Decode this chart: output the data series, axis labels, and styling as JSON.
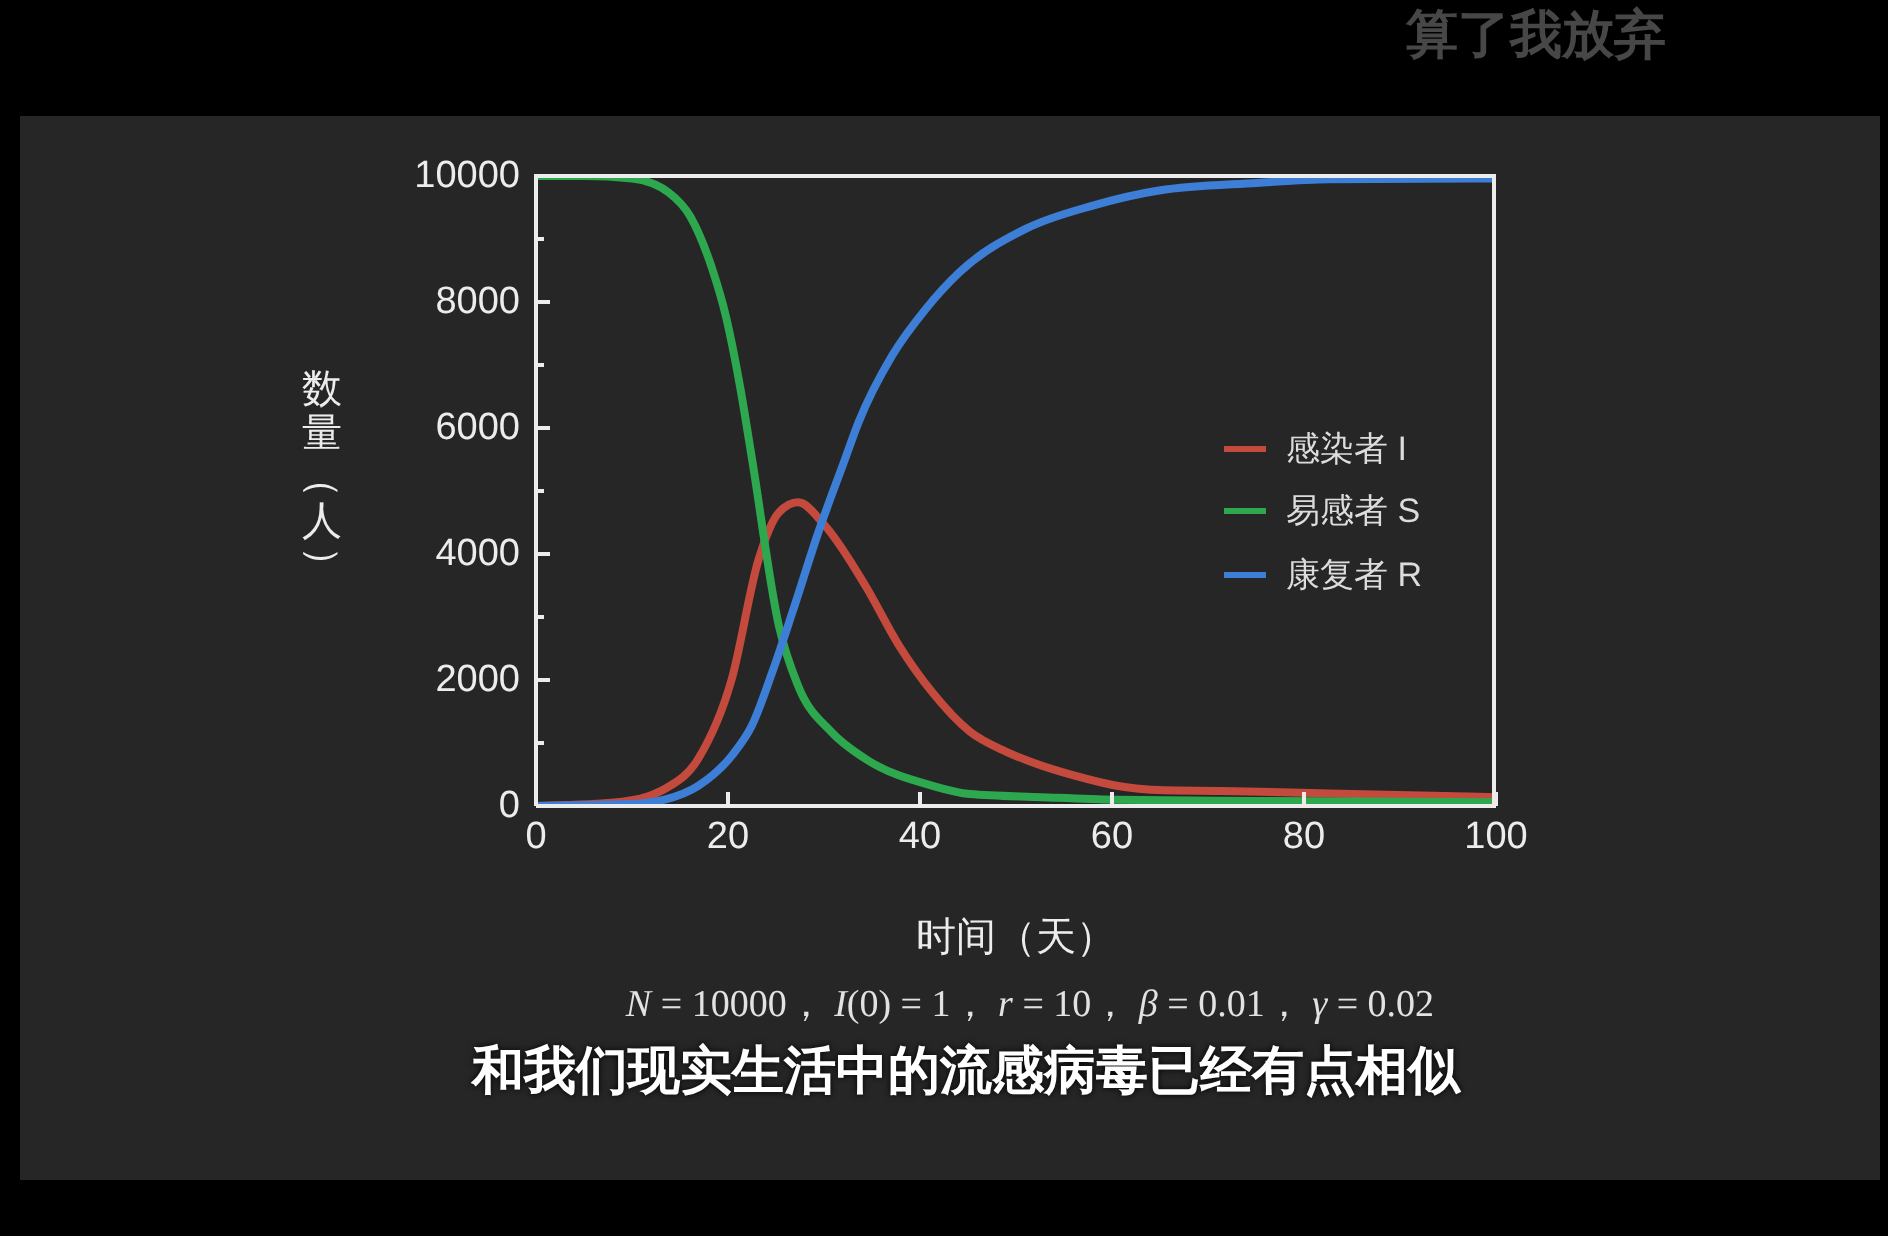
{
  "chart_data": {
    "type": "line",
    "xlabel": "时间（天）",
    "ylabel": "数量（人）",
    "annotations": [
      "算了我放弃",
      "N = 10000， I(0) = 1， r = 10， β = 0.01， γ = 0.02",
      "和我们现实生活中的流感病毒已经有点相似"
    ],
    "xlim": [
      0,
      100
    ],
    "xticks": [
      0,
      20,
      40,
      60,
      80,
      100
    ],
    "ylim": [
      0,
      10000
    ],
    "yticks": [
      0,
      {
        "value": 1000,
        "label": null
      },
      2000,
      {
        "value": 3000,
        "label": null
      },
      4000,
      {
        "value": 5000,
        "label": null
      },
      6000,
      {
        "value": 7000,
        "label": null
      },
      8000,
      {
        "value": 9000,
        "label": null
      },
      10000
    ],
    "legend": "right",
    "series": [
      {
        "name": "感染者 I",
        "color": "#c44a3e",
        "x": [
          0,
          7.8,
          11.6,
          13.4,
          16.9,
          20.4,
          23.2,
          25.3,
          27.3,
          30.1,
          34.3,
          37.8,
          41.3,
          45.2,
          49,
          52.7,
          56.4,
          60.2,
          65.4,
          71.4,
          82.6,
          100
        ],
        "values": [
          0,
          50,
          150,
          270,
          750,
          2020,
          3920,
          4660,
          4820,
          4450,
          3500,
          2550,
          1800,
          1180,
          860,
          640,
          470,
          330,
          250,
          240,
          200,
          140
        ]
      },
      {
        "name": "易感者 S",
        "color": "#2ea84e",
        "x": [
          0,
          5,
          10,
          13.8,
          16.1,
          18.3,
          19.8,
          21.3,
          22.5,
          25.3,
          27.3,
          30.8,
          34.3,
          41.3,
          45.2,
          52.7,
          60.2,
          75,
          100
        ],
        "values": [
          10000,
          10000,
          9960,
          9740,
          9350,
          8550,
          7760,
          6620,
          5510,
          2860,
          1910,
          1170,
          750,
          320,
          190,
          140,
          100,
          80,
          60
        ]
      },
      {
        "name": "康复者 R",
        "color": "#3d7fd6",
        "x": [
          0,
          10,
          13.4,
          16.9,
          20.4,
          22.5,
          24.6,
          26.7,
          29.4,
          32.2,
          33.6,
          37.1,
          40.6,
          44.1,
          51,
          58,
          64.9,
          75.1,
          82.6,
          100
        ],
        "values": [
          0,
          30,
          100,
          320,
          800,
          1280,
          2120,
          3070,
          4340,
          5510,
          6090,
          7150,
          7890,
          8470,
          9160,
          9530,
          9770,
          9890,
          9950,
          9960
        ]
      }
    ]
  }
}
